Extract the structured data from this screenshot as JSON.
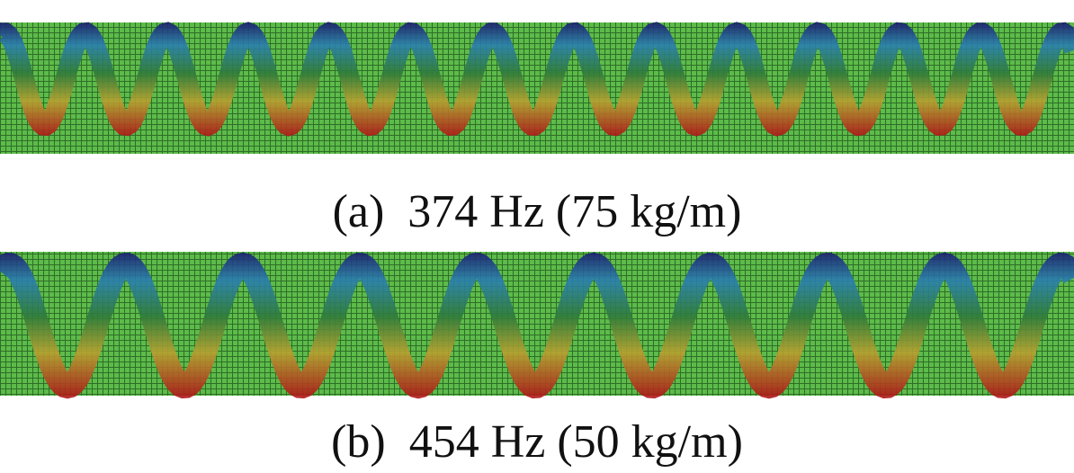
{
  "panels": [
    {
      "caption": "(a)  374 Hz (75 kg/m)"
    },
    {
      "caption": "(b)  454 Hz (50 kg/m)"
    }
  ]
}
